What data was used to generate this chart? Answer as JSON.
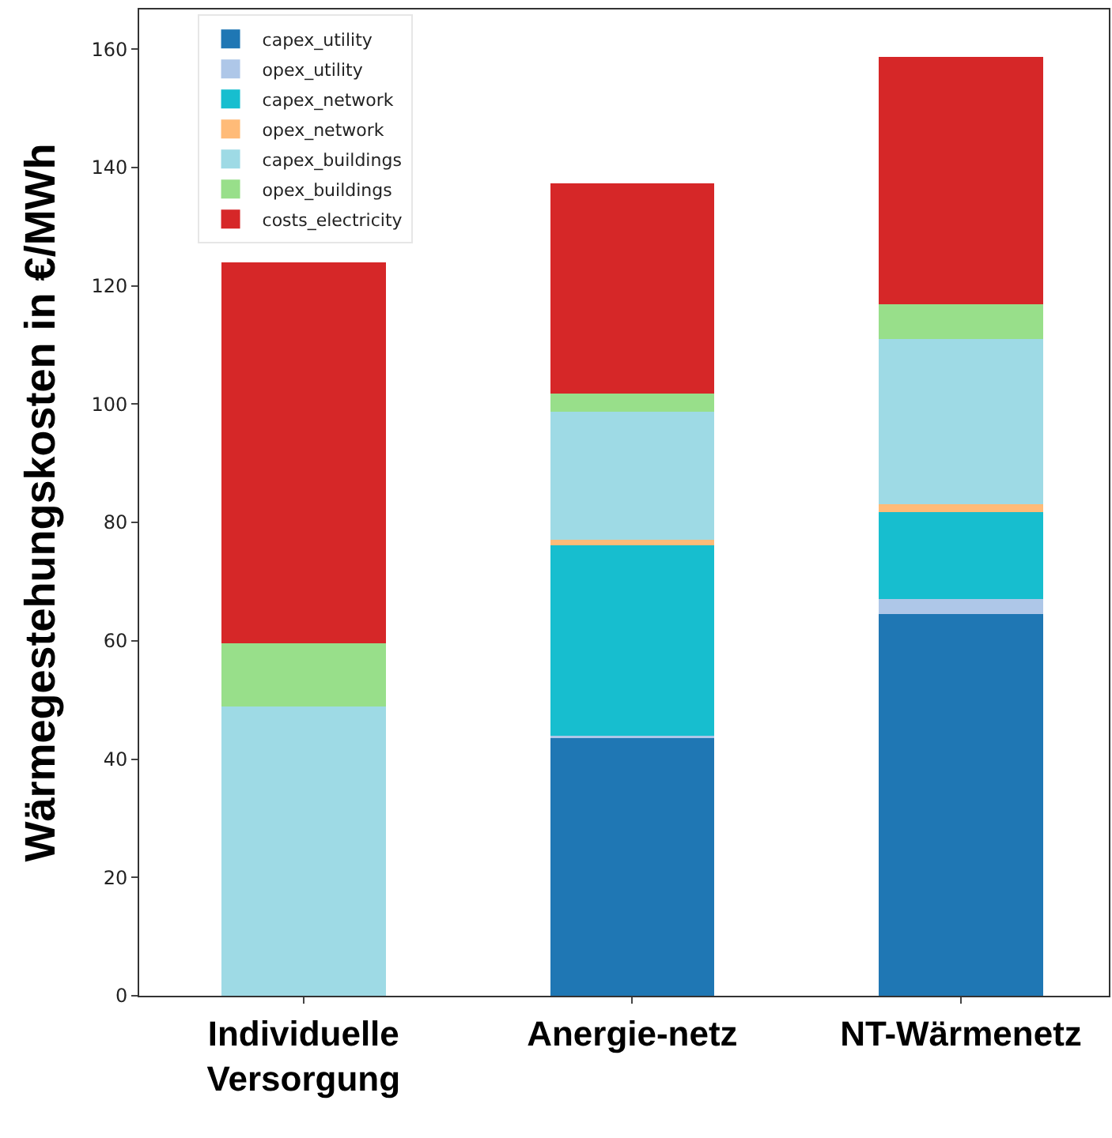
{
  "chart_data": {
    "type": "bar",
    "stacked": true,
    "ylabel": "Wärmegestehungskosten in €/MWh",
    "categories": [
      "Individuelle Versorgung",
      "Anergie-netz",
      "NT-Wärmenetz"
    ],
    "series": [
      {
        "name": "capex_utility",
        "color": "#1f77b4",
        "values": [
          0,
          43.7,
          64.5
        ]
      },
      {
        "name": "opex_utility",
        "color": "#aec7e8",
        "values": [
          0,
          0.3,
          2.5
        ]
      },
      {
        "name": "capex_network",
        "color": "#17becf",
        "values": [
          0,
          32.2,
          14.7
        ]
      },
      {
        "name": "opex_network",
        "color": "#ffbb78",
        "values": [
          0,
          0.9,
          1.4
        ]
      },
      {
        "name": "capex_buildings",
        "color": "#9edae5",
        "values": [
          48.9,
          21.6,
          27.9
        ]
      },
      {
        "name": "opex_buildings",
        "color": "#98df8a",
        "values": [
          10.7,
          3.1,
          5.9
        ]
      },
      {
        "name": "costs_electricity",
        "color": "#d62728",
        "values": [
          64.3,
          35.5,
          41.8
        ]
      }
    ],
    "ylim": [
      0,
      166.7
    ],
    "yticks": [
      0,
      20,
      40,
      60,
      80,
      100,
      120,
      140,
      160
    ],
    "legend": "top left"
  }
}
